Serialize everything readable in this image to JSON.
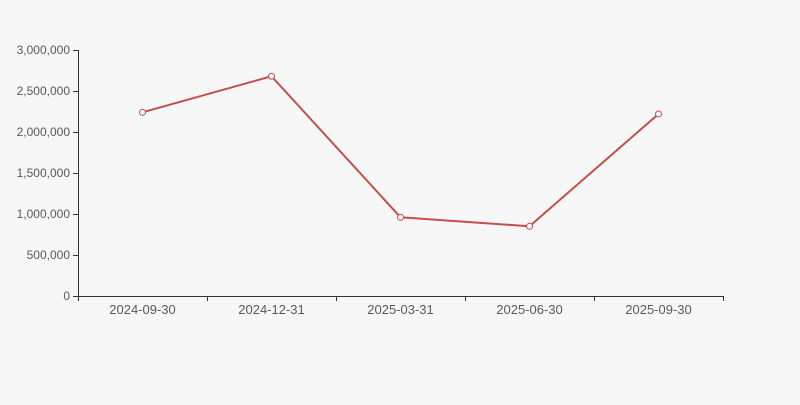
{
  "page": {
    "background_color": "#f7f7f7",
    "title": ""
  },
  "chart_data": {
    "type": "line",
    "categories": [
      "2024-09-30",
      "2024-12-31",
      "2025-03-31",
      "2025-06-30",
      "2025-09-30"
    ],
    "series": [
      {
        "name": "value",
        "values": [
          2240000,
          2680000,
          960000,
          850000,
          2220000
        ]
      }
    ],
    "title": "",
    "xlabel": "",
    "ylabel": "",
    "ylim": [
      0,
      3000000
    ],
    "ytick_step": 500000,
    "ytick_labels": [
      "0",
      "500,000",
      "1,000,000",
      "1,500,000",
      "2,000,000",
      "2,500,000",
      "3,000,000"
    ],
    "grid": false,
    "legend": null,
    "style": {
      "line_color": "#c34f4b",
      "line_width": 2,
      "marker_shape": "circle",
      "marker_radius": 3,
      "marker_fill": "#f7f7f7",
      "marker_stroke": "#c34f4b",
      "axis_color": "#333333",
      "label_color": "#595959",
      "background_color": "#f7f7f7"
    }
  }
}
